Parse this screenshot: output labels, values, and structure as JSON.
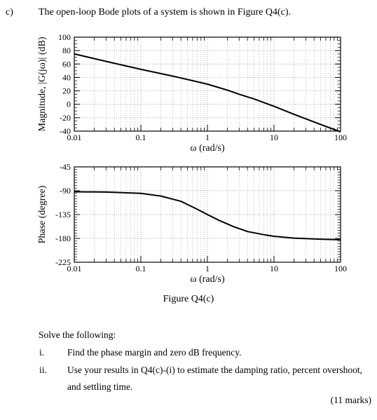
{
  "question": {
    "label": "c)",
    "intro": "The open-loop Bode plots of a system is shown in Figure Q4(c).",
    "figure_caption": "Figure Q4(c)",
    "solve_heading": "Solve the following:",
    "items": [
      {
        "num": "i.",
        "lines": [
          "Find the phase margin and zero dB frequency."
        ]
      },
      {
        "num": "ii.",
        "lines": [
          "Use your results in Q4(c)-(i) to estimate the damping ratio, percent overshoot,",
          "and settling time."
        ]
      }
    ],
    "marks": "(11 marks)"
  },
  "chart_data": [
    {
      "type": "line",
      "title": "",
      "xlabel": "ω (rad/s)",
      "ylabel": "Magnitude, |G(jω)| (dB)",
      "x_scale": "log",
      "xlim": [
        0.01,
        100
      ],
      "ylim": [
        -40,
        100
      ],
      "x_ticks": [
        "0.01",
        "0.1",
        "1",
        "10",
        "100"
      ],
      "y_ticks": [
        "100",
        "80",
        "60",
        "40",
        "20",
        "0",
        "-20",
        "-40"
      ],
      "grid": true,
      "series": [
        {
          "x": [
            0.01,
            0.03,
            0.1,
            0.3,
            1,
            2,
            3,
            5,
            10,
            20,
            50,
            100
          ],
          "y": [
            75,
            64,
            52,
            42,
            30,
            21,
            15,
            8,
            -3,
            -15,
            -30,
            -41
          ]
        }
      ]
    },
    {
      "type": "line",
      "title": "",
      "xlabel": "ω (rad/s)",
      "ylabel": "Phase (degree)",
      "x_scale": "log",
      "xlim": [
        0.01,
        100
      ],
      "ylim": [
        -225,
        -45
      ],
      "x_ticks": [
        "0.01",
        "0.1",
        "1",
        "10",
        "100"
      ],
      "y_ticks": [
        "-45",
        "-90",
        "-135",
        "-180",
        "-225"
      ],
      "grid": true,
      "series": [
        {
          "x": [
            0.01,
            0.03,
            0.1,
            0.2,
            0.4,
            0.7,
            1,
            1.5,
            2.5,
            4,
            7,
            10,
            20,
            50,
            100
          ],
          "y": [
            -92,
            -92.5,
            -95,
            -100,
            -110,
            -125,
            -135,
            -146,
            -158,
            -167,
            -173,
            -176,
            -179.5,
            -181.5,
            -182.5
          ]
        }
      ]
    }
  ]
}
